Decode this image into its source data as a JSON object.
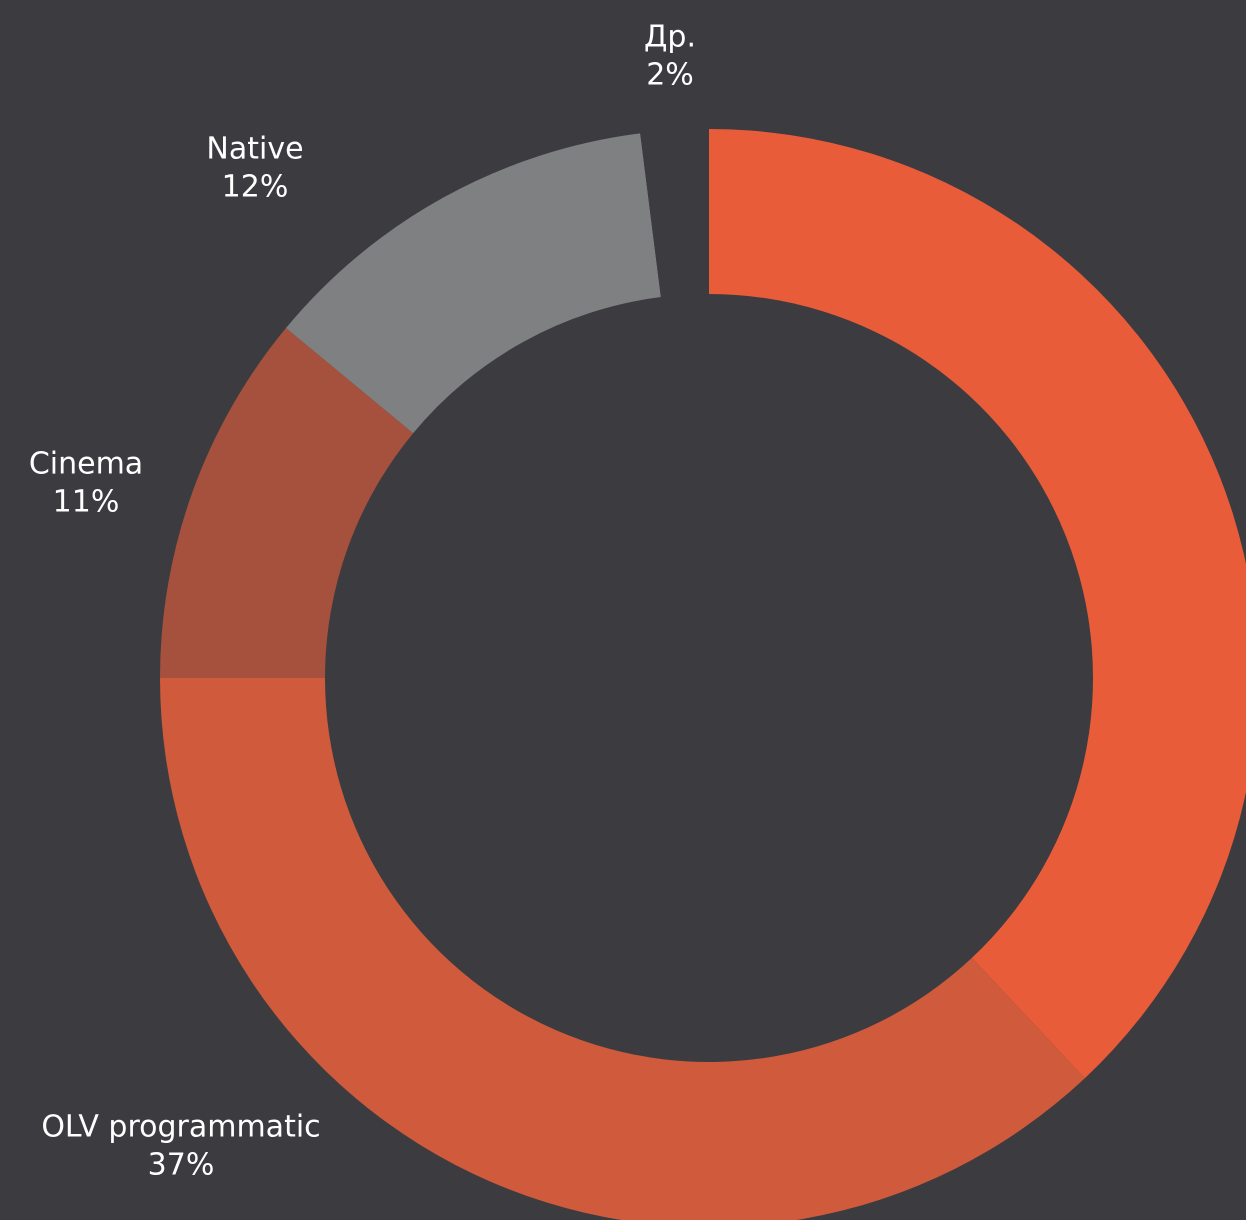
{
  "chart_data": {
    "type": "donut",
    "categories": [
      null,
      "OLV programmatic",
      "Cinema",
      "Native",
      "Др."
    ],
    "values": [
      38,
      37,
      11,
      12,
      2
    ],
    "value_labels": [
      null,
      "37%",
      "11%",
      "12%",
      "2%"
    ],
    "colors": [
      "#e95c39",
      "#d05a3c",
      "#a5513d",
      "#7f8081",
      "#3c3c40"
    ]
  }
}
